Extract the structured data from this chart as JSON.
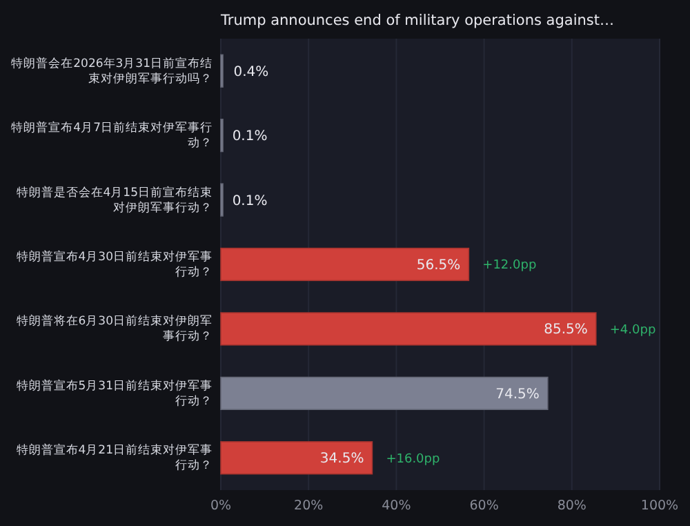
{
  "chart_data": {
    "type": "bar",
    "orientation": "horizontal",
    "title": "Trump announces end of military operations against…",
    "categories": [
      "特朗普会在2026年3月31日前宣布结束对伊朗军事行动吗？",
      "特朗普宣布4月7日前结束对伊军事行动？",
      "特朗普是否会在4月15日前宣布结束对伊朗军事行动？",
      "特朗普宣布4月30日前结束对伊军事行动？",
      "特朗普将在6月30日前结束对伊朗军事行动？",
      "特朗普宣布5月31日前结束对伊军事行动？",
      "特朗普宣布4月21日前结束对伊军事行动？"
    ],
    "values": [
      0.4,
      0.1,
      0.1,
      56.5,
      85.5,
      74.5,
      34.5
    ],
    "colors": [
      "#7c8092",
      "#7c8092",
      "#7c8092",
      "#d0403a",
      "#d0403a",
      "#7c8092",
      "#d0403a"
    ],
    "value_labels": [
      "0.4%",
      "0.1%",
      "0.1%",
      "56.5%",
      "85.5%",
      "74.5%",
      "34.5%"
    ],
    "annotations": [
      {
        "text": "+12.0pp",
        "x": 56.5,
        "y": "特朗普宣布4月30日前结束对伊军事行动？"
      },
      {
        "text": "+4.0pp",
        "x": 85.5,
        "y": "特朗普将在6月30日前结束对伊朗军事行动？"
      },
      {
        "text": "+16.0pp",
        "x": 34.5,
        "y": "特朗普宣布4月21日前结束对伊军事行动？"
      }
    ],
    "xlim": [
      0,
      100
    ],
    "xticks": [
      {
        "value": 0,
        "label": "0%"
      },
      {
        "value": 20,
        "label": "20%"
      },
      {
        "value": 40,
        "label": "40%"
      },
      {
        "value": 60,
        "label": "60%"
      },
      {
        "value": 80,
        "label": "80%"
      },
      {
        "value": 100,
        "label": "100%"
      }
    ],
    "grid": "x"
  }
}
